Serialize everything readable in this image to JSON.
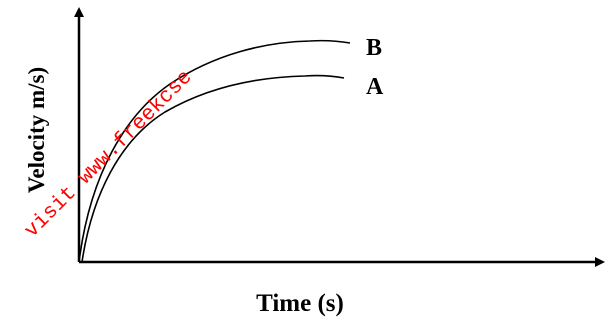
{
  "diagram": {
    "y_axis_label": "Velocity m/s)",
    "x_axis_label": "Time (s)",
    "curves": [
      {
        "label": "B"
      },
      {
        "label": "A"
      }
    ],
    "watermark": "visit www.freekcse"
  },
  "colors": {
    "ink": "#000000",
    "watermark": "#ff0000",
    "background": "#ffffff"
  }
}
